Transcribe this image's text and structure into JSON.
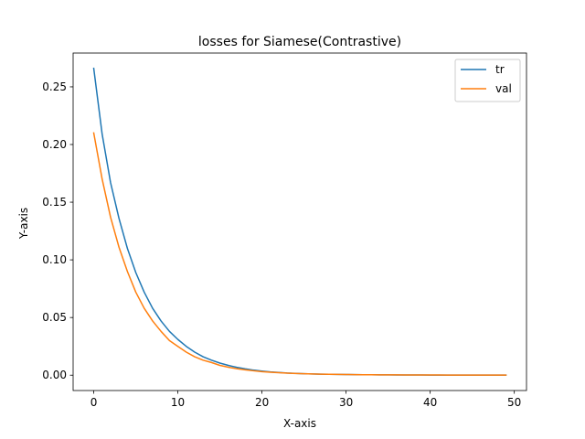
{
  "chart_data": {
    "type": "line",
    "title": "losses for Siamese(Contrastive)",
    "xlabel": "X-axis",
    "ylabel": "Y-axis",
    "xlim": [
      -2.45,
      51.45
    ],
    "ylim": [
      -0.0133,
      0.2793
    ],
    "xticks": [
      0,
      10,
      20,
      30,
      40,
      50
    ],
    "yticks": [
      0.0,
      0.05,
      0.1,
      0.15,
      0.2,
      0.25
    ],
    "ytick_labels": [
      "0.00",
      "0.05",
      "0.10",
      "0.15",
      "0.20",
      "0.25"
    ],
    "grid": false,
    "legend_position": "top-right",
    "x": [
      0,
      1,
      2,
      3,
      4,
      5,
      6,
      7,
      8,
      9,
      10,
      11,
      12,
      13,
      14,
      15,
      16,
      17,
      18,
      19,
      20,
      21,
      22,
      23,
      24,
      25,
      26,
      27,
      28,
      29,
      30,
      31,
      32,
      33,
      34,
      35,
      36,
      37,
      38,
      39,
      40,
      41,
      42,
      43,
      44,
      45,
      46,
      47,
      48,
      49
    ],
    "series": [
      {
        "name": "tr",
        "color": "#1f77b4",
        "values": [
          0.266,
          0.209,
          0.167,
          0.136,
          0.11,
          0.089,
          0.072,
          0.058,
          0.047,
          0.038,
          0.031,
          0.025,
          0.02,
          0.016,
          0.013,
          0.0105,
          0.0085,
          0.0068,
          0.0055,
          0.0044,
          0.0036,
          0.0029,
          0.0024,
          0.0019,
          0.0016,
          0.0013,
          0.0011,
          0.0009,
          0.0008,
          0.0007,
          0.0006,
          0.0005,
          0.0004,
          0.0004,
          0.0003,
          0.0003,
          0.0002,
          0.0002,
          0.0002,
          0.0002,
          0.0001,
          0.0001,
          0.0001,
          0.0001,
          0.0001,
          0.0001,
          0.0001,
          0.0001,
          0.0001,
          0.0001
        ]
      },
      {
        "name": "val",
        "color": "#ff7f0e",
        "values": [
          0.21,
          0.17,
          0.137,
          0.111,
          0.09,
          0.072,
          0.058,
          0.047,
          0.038,
          0.03,
          0.025,
          0.02,
          0.016,
          0.013,
          0.011,
          0.0085,
          0.0069,
          0.0056,
          0.0046,
          0.0038,
          0.0031,
          0.0026,
          0.0022,
          0.0018,
          0.0015,
          0.0013,
          0.0011,
          0.0009,
          0.0008,
          0.0007,
          0.0006,
          0.0005,
          0.0004,
          0.0004,
          0.0003,
          0.0003,
          0.0003,
          0.0002,
          0.0002,
          0.0002,
          0.0002,
          0.0002,
          0.0001,
          0.0001,
          0.0001,
          0.0001,
          0.0001,
          0.0001,
          0.0001,
          0.0001
        ]
      }
    ]
  }
}
